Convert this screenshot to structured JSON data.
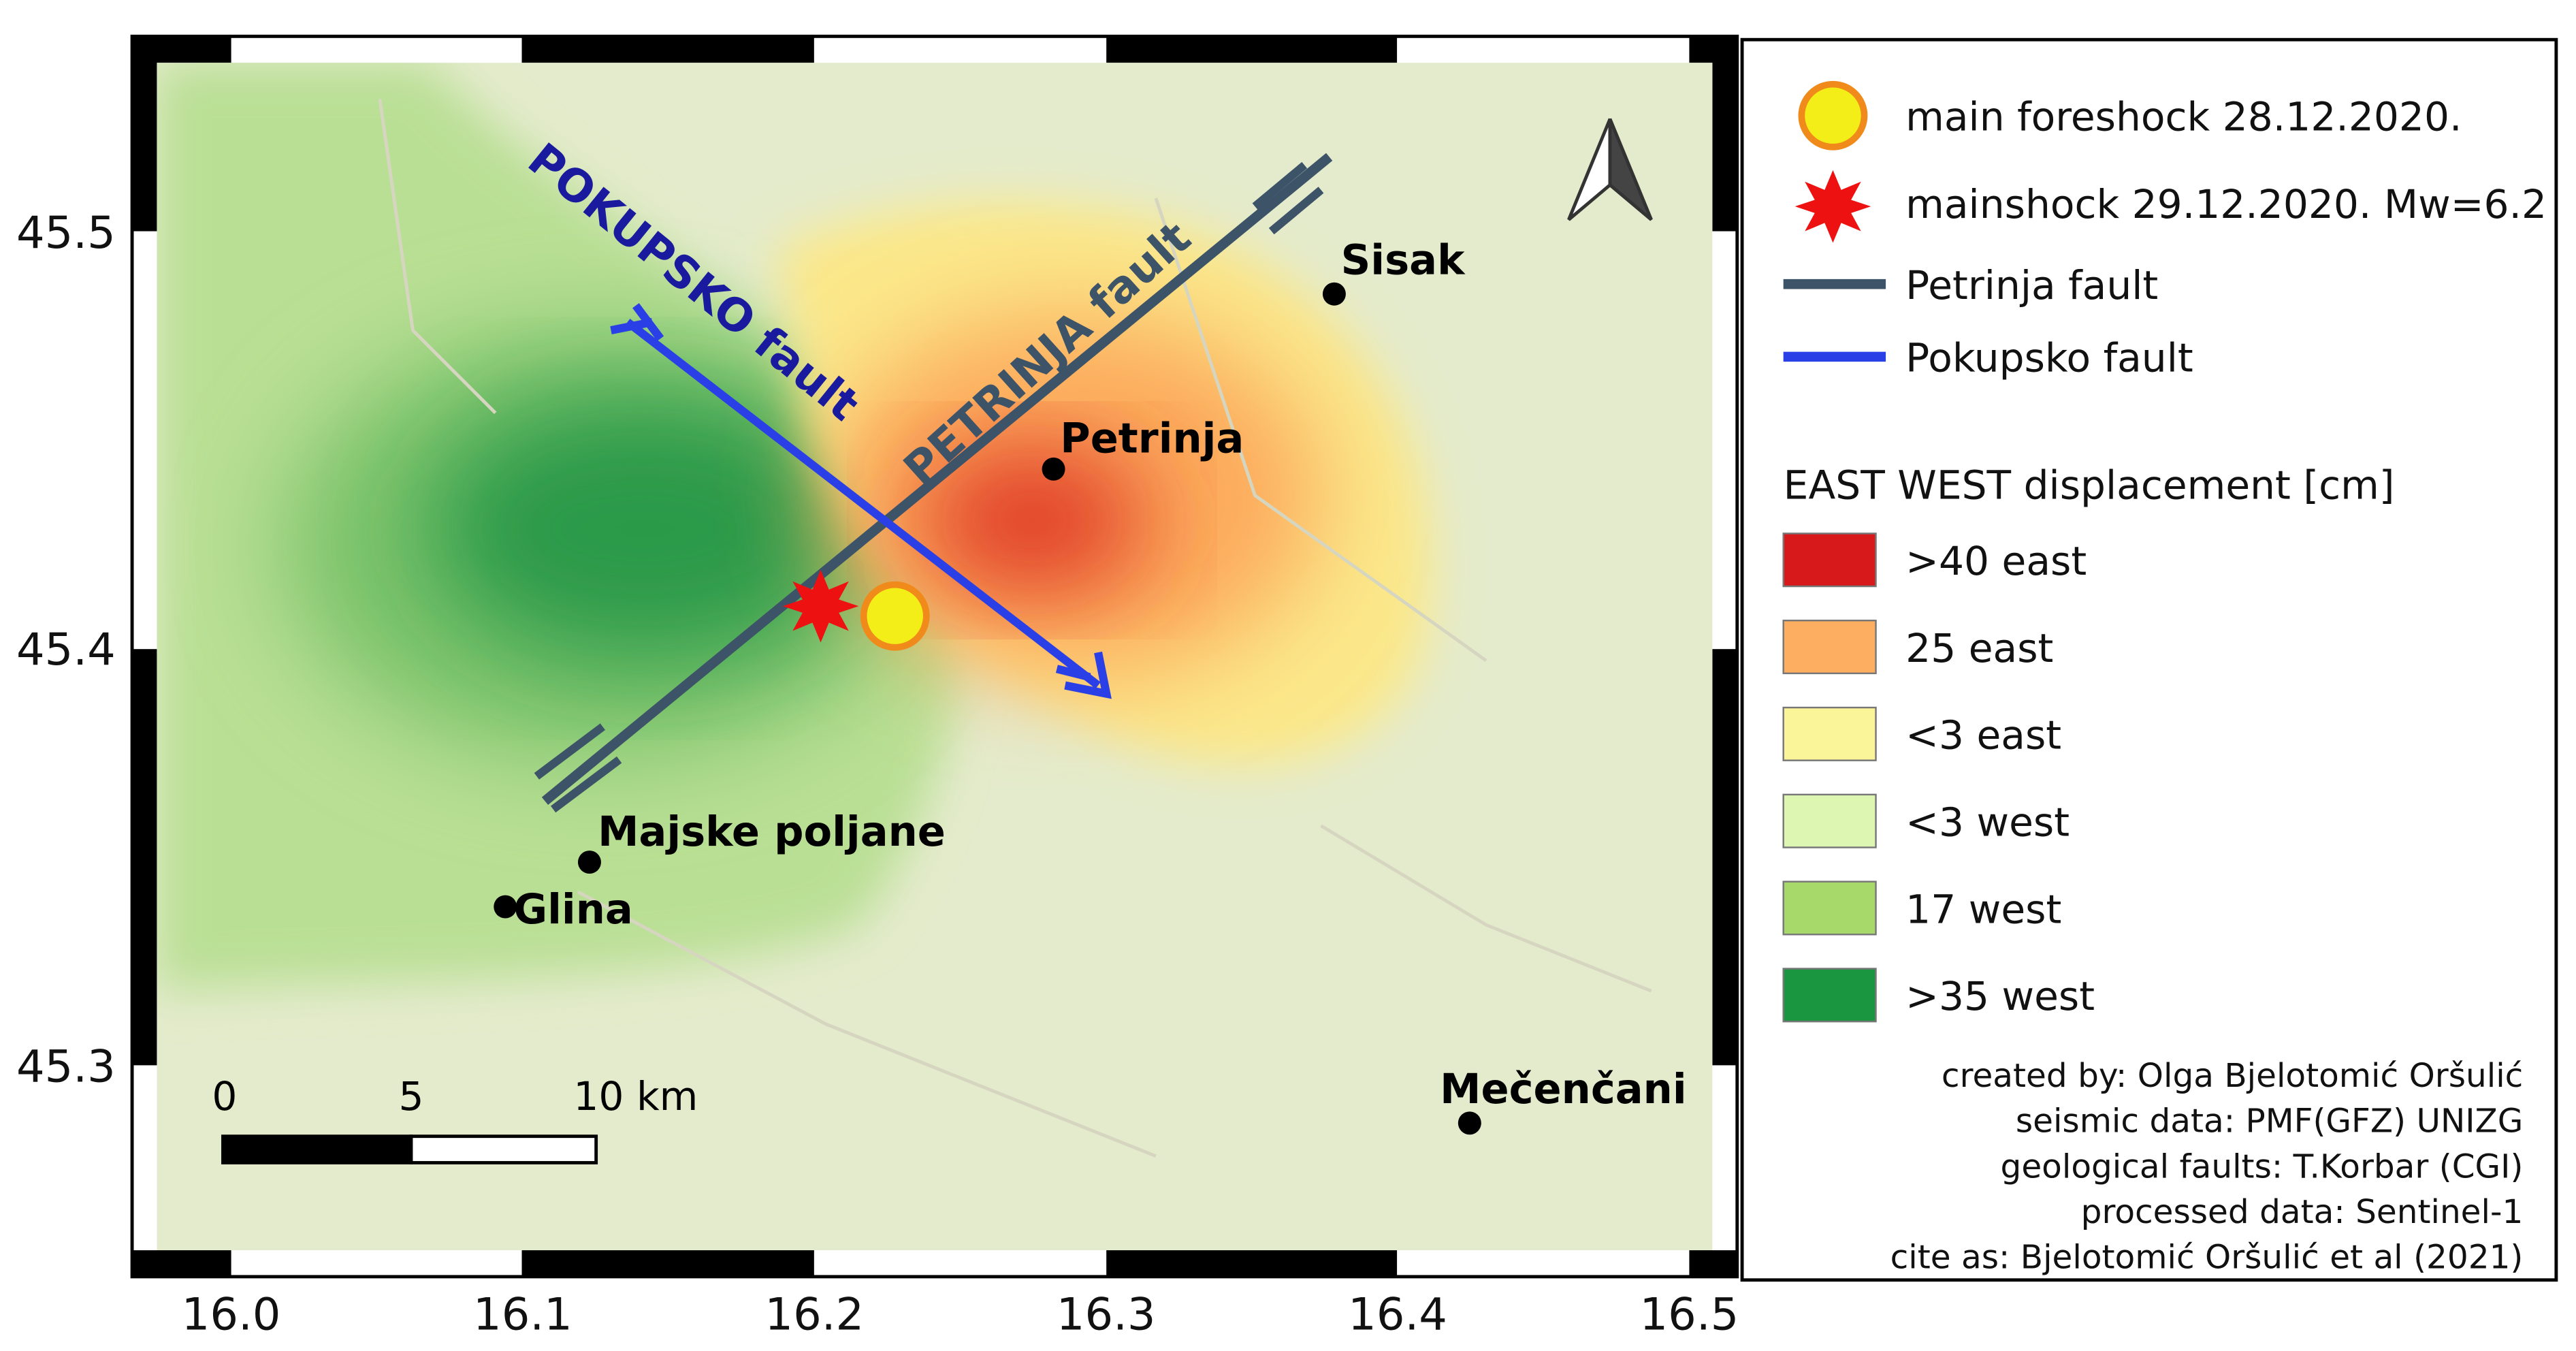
{
  "axes": {
    "x_ticks": [
      "16.0",
      "16.1",
      "16.2",
      "16.3",
      "16.4",
      "16.5"
    ],
    "y_ticks": [
      "45.5",
      "45.4",
      "45.3"
    ]
  },
  "map": {
    "places": [
      "Sisak",
      "Petrinja",
      "Majske poljane",
      "Glina",
      "Mečenčani"
    ],
    "fault_labels": [
      "POKUPSKO fault",
      "PETRINJA fault"
    ],
    "scale_bar": [
      "0",
      "5",
      "10 km"
    ]
  },
  "legend": {
    "items": [
      "main foreshock 28.12.2020.",
      "mainshock 29.12.2020. Mw=6.2",
      "Petrinja fault",
      "Pokupsko fault"
    ],
    "displacement_title": "EAST WEST displacement [cm]",
    "classes": [
      {
        "label": ">40 east",
        "color": "#d7191c"
      },
      {
        "label": "25 east",
        "color": "#fdae61"
      },
      {
        "label": "<3 east",
        "color": "#fbf59a"
      },
      {
        "label": "<3 west",
        "color": "#ddf7b3"
      },
      {
        "label": "17 west",
        "color": "#a6d96a"
      },
      {
        "label": ">35 west",
        "color": "#1a9641"
      }
    ]
  },
  "credits": [
    "created by: Olga Bjelotomić Oršulić",
    "seismic data: PMF(GFZ) UNIZG",
    "geological faults: T.Korbar (CGI)",
    "processed data: Sentinel-1",
    "cite as: Bjelotomić Oršulić et al (2021)"
  ]
}
